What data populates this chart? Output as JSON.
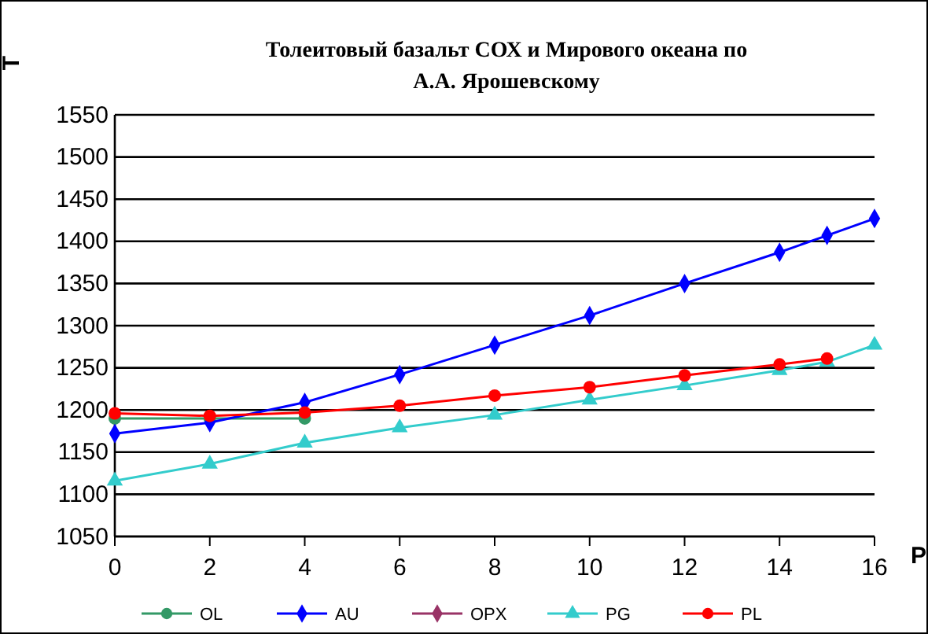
{
  "chart_data": {
    "type": "line",
    "title": "Толеитовый базальт СОХ и Мирового океана по А.А. Ярошевскому",
    "xlabel": "P",
    "ylabel": "T",
    "xlim": [
      0,
      16
    ],
    "xticks": [
      0,
      2,
      4,
      6,
      8,
      10,
      12,
      14,
      16
    ],
    "ylim": [
      1050,
      1550
    ],
    "yticks": [
      1050,
      1100,
      1150,
      1200,
      1250,
      1300,
      1350,
      1400,
      1450,
      1500,
      1550
    ],
    "grid": "y",
    "legend": "bottom",
    "series": [
      {
        "name": "OL",
        "color": "#339966",
        "marker": "circle",
        "x": [
          0,
          2,
          4
        ],
        "values": [
          1190,
          1190,
          1190
        ]
      },
      {
        "name": "AU",
        "color": "#0000ff",
        "marker": "diamond",
        "x": [
          0,
          2,
          4,
          6,
          8,
          10,
          12,
          14,
          15,
          16
        ],
        "values": [
          1172,
          1185,
          1209,
          1242,
          1277,
          1312,
          1350,
          1387,
          1407,
          1427
        ]
      },
      {
        "name": "OPX",
        "color": "#993366",
        "marker": "diamond"
      },
      {
        "name": "PG",
        "color": "#33cccc",
        "marker": "triangle",
        "x": [
          0,
          2,
          4,
          6,
          8,
          10,
          12,
          14,
          15,
          16
        ],
        "values": [
          1116,
          1136,
          1161,
          1179,
          1194,
          1212,
          1229,
          1247,
          1257,
          1277
        ]
      },
      {
        "name": "PL",
        "color": "#ff0000",
        "marker": "circle",
        "x": [
          0,
          2,
          4,
          6,
          8,
          10,
          12,
          14,
          15
        ],
        "values": [
          1196,
          1193,
          1197,
          1205,
          1217,
          1227,
          1241,
          1254,
          1261
        ]
      }
    ]
  }
}
